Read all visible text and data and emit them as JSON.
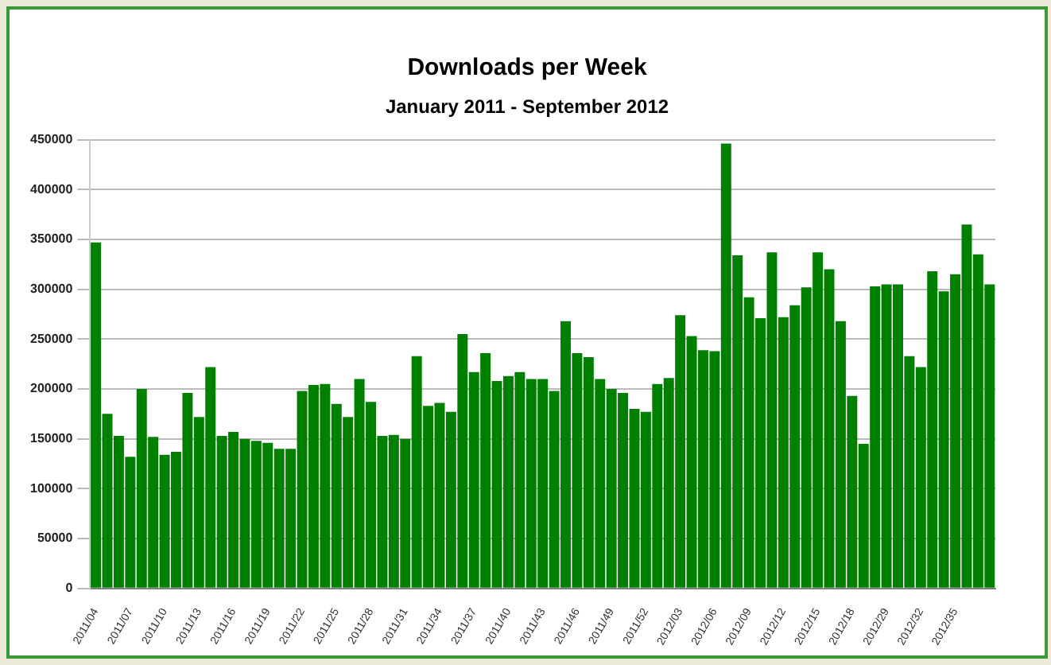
{
  "chart_data": {
    "type": "bar",
    "title": "Downloads per Week",
    "subtitle": "January 2011 - September 2012",
    "categories": [
      "2011/04",
      null,
      null,
      "2011/07",
      null,
      null,
      "2011/10",
      null,
      null,
      "2011/13",
      null,
      null,
      "2011/16",
      null,
      null,
      "2011/19",
      null,
      null,
      "2011/22",
      null,
      null,
      "2011/25",
      null,
      null,
      "2011/28",
      null,
      null,
      "2011/31",
      null,
      null,
      "2011/34",
      null,
      null,
      "2011/37",
      null,
      null,
      "2011/40",
      null,
      null,
      "2011/43",
      null,
      null,
      "2011/46",
      null,
      null,
      "2011/49",
      null,
      null,
      "2011/52",
      null,
      null,
      "2012/03",
      null,
      null,
      "2012/06",
      null,
      null,
      "2012/09",
      null,
      null,
      "2012/12",
      null,
      null,
      "2012/15",
      null,
      null,
      "2012/18",
      null,
      null,
      "2012/29",
      null,
      null,
      "2012/32",
      null,
      null,
      "2012/35",
      null,
      null,
      null
    ],
    "values": [
      347000,
      175000,
      153000,
      132000,
      200000,
      152000,
      134000,
      137000,
      196000,
      172000,
      222000,
      153000,
      157000,
      150000,
      148000,
      146000,
      140000,
      140000,
      198000,
      204000,
      205000,
      185000,
      172000,
      210000,
      187000,
      153000,
      154000,
      150000,
      233000,
      183000,
      186000,
      177000,
      255000,
      217000,
      236000,
      208000,
      213000,
      217000,
      210000,
      210000,
      198000,
      268000,
      236000,
      232000,
      210000,
      200000,
      196000,
      180000,
      177000,
      205000,
      211000,
      274000,
      253000,
      239000,
      238000,
      446000,
      334000,
      292000,
      271000,
      337000,
      272000,
      284000,
      302000,
      337000,
      320000,
      268000,
      193000,
      145000,
      303000,
      305000,
      305000,
      233000,
      222000,
      318000,
      298000,
      315000,
      365000,
      335000,
      305000
    ],
    "color": "#008000",
    "ylim": [
      0,
      450000
    ],
    "yticks": [
      0,
      50000,
      100000,
      150000,
      200000,
      250000,
      300000,
      350000,
      400000,
      450000
    ],
    "grid": "y"
  }
}
